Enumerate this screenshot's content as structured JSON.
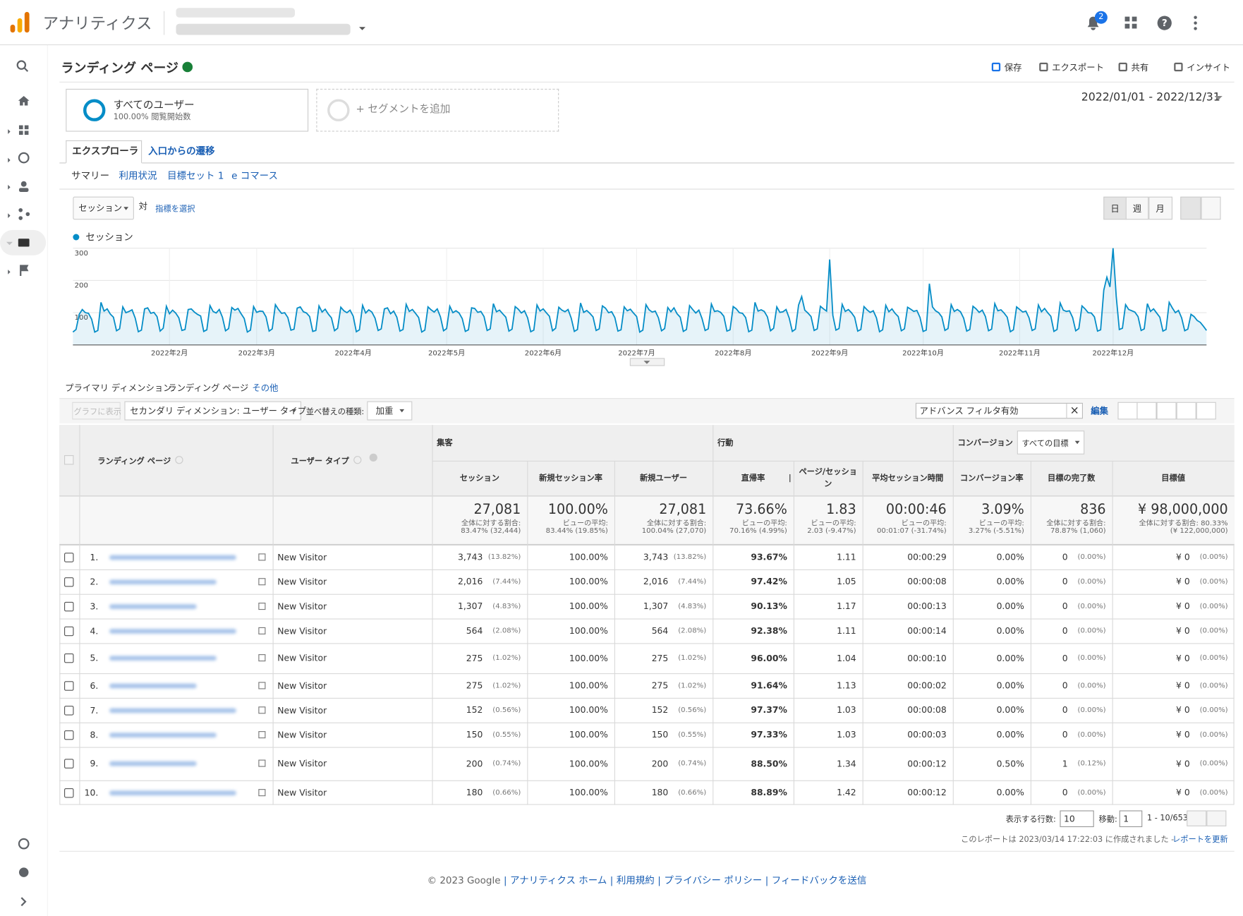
{
  "header": {
    "app_name": "アナリティクス",
    "notification_count": "2"
  },
  "report": {
    "title": "ランディング ページ",
    "actions": [
      "保存",
      "エクスポート",
      "共有",
      "インサイト"
    ]
  },
  "segments": {
    "items": [
      {
        "name": "すべてのユーザー",
        "detail": "100.00% 閲覧開始数"
      }
    ],
    "add": "+ セグメントを追加"
  },
  "date_range": "2022/01/01 - 2022/12/31",
  "tabs": [
    "エクスプローラ",
    "入口からの遷移"
  ],
  "subtabs": [
    "サマリー",
    "利用状況",
    "目標セット 1",
    "e コマース"
  ],
  "chart_controls": {
    "metric": "セッション",
    "versus": "対",
    "select_metric": "指標を選択",
    "granularity": [
      "日",
      "週",
      "月"
    ]
  },
  "chart_data": {
    "type": "line",
    "series": [
      {
        "name": "セッション",
        "color": "#058dc7",
        "values": [
          40,
          48,
          95,
          110,
          100,
          98,
          80,
          40,
          45,
          132,
          105,
          112,
          96,
          86,
          44,
          50,
          118,
          100,
          104,
          109,
          83,
          41,
          46,
          112,
          115,
          98,
          101,
          88,
          43,
          52,
          120,
          97,
          108,
          99,
          84,
          45,
          48,
          110,
          112,
          102,
          95,
          90,
          42,
          47,
          122,
          104,
          99,
          110,
          86,
          44,
          51,
          116,
          108,
          113,
          97,
          82,
          40,
          46,
          119,
          101,
          105,
          104,
          87,
          43,
          50,
          125,
          110,
          98,
          100,
          85,
          46,
          49,
          114,
          118,
          103,
          99,
          88,
          42,
          45,
          121,
          102,
          111,
          96,
          84,
          44,
          52,
          117,
          106,
          100,
          108,
          89,
          41,
          47,
          123,
          99,
          109,
          102,
          83,
          45,
          50,
          112,
          115,
          97,
          105,
          86,
          43,
          48,
          126,
          104,
          110,
          98,
          85,
          40,
          46,
          118,
          109,
          102,
          112,
          87,
          44,
          51,
          120,
          100,
          106,
          99,
          82,
          42,
          47,
          115,
          113,
          101,
          104,
          88,
          45,
          50,
          128,
          103,
          108,
          97,
          86,
          43,
          49,
          119,
          111,
          99,
          106,
          84,
          41,
          46,
          124,
          105,
          112,
          100,
          89,
          44,
          52,
          117,
          108,
          103,
          110,
          83,
          42,
          48,
          130,
          101,
          107,
          98,
          87,
          45,
          50,
          121,
          114,
          100,
          103,
          85,
          43,
          47,
          118,
          106,
          111,
          99,
          88,
          40,
          46,
          125,
          109,
          102,
          105,
          84,
          44,
          51,
          116,
          103,
          115,
          97,
          86,
          42,
          48,
          122,
          110,
          99,
          108,
          82,
          45,
          50,
          127,
          104,
          106,
          101,
          89,
          43,
          47,
          119,
          112,
          100,
          98,
          85,
          41,
          46,
          132,
          105,
          109,
          104,
          87,
          44,
          52,
          118,
          101,
          103,
          110,
          83,
          42,
          49,
          124,
          150,
          108,
          99,
          88,
          45,
          50,
          120,
          112,
          105,
          265,
          92,
          46,
          51,
          126,
          104,
          110,
          100,
          86,
          43,
          48,
          119,
          109,
          101,
          106,
          84,
          41,
          47,
          123,
          103,
          112,
          98,
          88,
          44,
          50,
          117,
          111,
          104,
          107,
          85,
          42,
          46,
          190,
          118,
          106,
          100,
          87,
          45,
          51,
          125,
          104,
          110,
          103,
          83,
          43,
          48,
          120,
          112,
          101,
          108,
          88,
          44,
          49,
          128,
          106,
          109,
          99,
          86,
          41,
          47,
          118,
          110,
          102,
          105,
          84,
          45,
          50,
          124,
          103,
          113,
          100,
          89,
          42,
          48,
          130,
          108,
          104,
          106,
          85,
          44,
          51,
          121,
          112,
          100,
          99,
          87,
          43,
          47,
          170,
          210,
          180,
          300,
          150,
          48,
          52,
          125,
          110,
          106,
          102,
          88,
          45,
          50,
          128,
          104,
          112,
          99,
          86,
          43,
          48,
          132,
          115,
          100,
          107,
          84,
          44,
          49,
          95,
          88,
          76,
          70,
          58,
          45
        ]
      }
    ],
    "xlim": [
      1,
      365
    ],
    "xticks": [
      {
        "value": 32,
        "label": "2022年2月"
      },
      {
        "value": 60,
        "label": "2022年3月"
      },
      {
        "value": 91,
        "label": "2022年4月"
      },
      {
        "value": 121,
        "label": "2022年5月"
      },
      {
        "value": 152,
        "label": "2022年6月"
      },
      {
        "value": 182,
        "label": "2022年7月"
      },
      {
        "value": 213,
        "label": "2022年8月"
      },
      {
        "value": 244,
        "label": "2022年9月"
      },
      {
        "value": 274,
        "label": "2022年10月"
      },
      {
        "value": 305,
        "label": "2022年11月"
      },
      {
        "value": 335,
        "label": "2022年12月"
      }
    ],
    "ylim": [
      0,
      300
    ],
    "yticks": [
      100,
      200,
      300
    ],
    "grid": true,
    "legend": "top-left"
  },
  "dimension": {
    "label": "プライマリ ディメンション:",
    "value": "ランディング ページ",
    "other": "その他"
  },
  "toolbar": {
    "plot": "グラフに表示",
    "secondary": "セカンダリ ディメンション: ユーザー タイプ",
    "sort_label": "並べ替えの種類:",
    "sort": "加重",
    "filter": "アドバンス フィルタ有効",
    "edit": "編集"
  },
  "table": {
    "group_headers": [
      "集客",
      "行動",
      "コンバージョン"
    ],
    "goal_select": "すべての目標",
    "columns": [
      "ランディング ページ",
      "ユーザー タイプ",
      "セッション",
      "新規セッション率",
      "新規ユーザー",
      "直帰率",
      "ページ/セッション",
      "平均セッション時間",
      "コンバージョン率",
      "目標の完了数",
      "目標値"
    ],
    "totals": [
      {
        "value": "27,081",
        "label": "全体に対する割合:",
        "detail": "83.47% (32,444)"
      },
      {
        "value": "100.00%",
        "label": "ビューの平均:",
        "detail": "83.44% (19.85%)"
      },
      {
        "value": "27,081",
        "label": "全体に対する割合:",
        "detail": "100.04% (27,070)"
      },
      {
        "value": "73.66%",
        "label": "ビューの平均:",
        "detail": "70.16% (4.99%)"
      },
      {
        "value": "1.83",
        "label": "ビューの平均:",
        "detail": "2.03 (-9.47%)"
      },
      {
        "value": "00:00:46",
        "label": "ビューの平均:",
        "detail": "00:01:07 (-31.74%)"
      },
      {
        "value": "3.09%",
        "label": "ビューの平均:",
        "detail": "3.27% (-5.51%)"
      },
      {
        "value": "836",
        "label": "全体に対する割合:",
        "detail": "78.87% (1,060)"
      },
      {
        "value": "¥ 98,000,000",
        "label": "全体に対する割合: 80.33%",
        "detail": "(¥ 122,000,000)"
      }
    ],
    "rows": [
      {
        "num": "1.",
        "user_type": "New Visitor",
        "cells": [
          [
            "3,743",
            "(13.82%)"
          ],
          [
            "100.00%"
          ],
          [
            "3,743",
            "(13.82%)"
          ],
          [
            "93.67%"
          ],
          [
            "1.11"
          ],
          [
            "00:00:29"
          ],
          [
            "0.00%"
          ],
          [
            "0",
            "(0.00%)"
          ],
          [
            "¥ 0",
            "(0.00%)"
          ]
        ]
      },
      {
        "num": "2.",
        "user_type": "New Visitor",
        "cells": [
          [
            "2,016",
            "(7.44%)"
          ],
          [
            "100.00%"
          ],
          [
            "2,016",
            "(7.44%)"
          ],
          [
            "97.42%"
          ],
          [
            "1.05"
          ],
          [
            "00:00:08"
          ],
          [
            "0.00%"
          ],
          [
            "0",
            "(0.00%)"
          ],
          [
            "¥ 0",
            "(0.00%)"
          ]
        ]
      },
      {
        "num": "3.",
        "user_type": "New Visitor",
        "cells": [
          [
            "1,307",
            "(4.83%)"
          ],
          [
            "100.00%"
          ],
          [
            "1,307",
            "(4.83%)"
          ],
          [
            "90.13%"
          ],
          [
            "1.17"
          ],
          [
            "00:00:13"
          ],
          [
            "0.00%"
          ],
          [
            "0",
            "(0.00%)"
          ],
          [
            "¥ 0",
            "(0.00%)"
          ]
        ]
      },
      {
        "num": "4.",
        "user_type": "New Visitor",
        "cells": [
          [
            "564",
            "(2.08%)"
          ],
          [
            "100.00%"
          ],
          [
            "564",
            "(2.08%)"
          ],
          [
            "92.38%"
          ],
          [
            "1.11"
          ],
          [
            "00:00:14"
          ],
          [
            "0.00%"
          ],
          [
            "0",
            "(0.00%)"
          ],
          [
            "¥ 0",
            "(0.00%)"
          ]
        ]
      },
      {
        "num": "5.",
        "user_type": "New Visitor",
        "cells": [
          [
            "275",
            "(1.02%)"
          ],
          [
            "100.00%"
          ],
          [
            "275",
            "(1.02%)"
          ],
          [
            "96.00%"
          ],
          [
            "1.04"
          ],
          [
            "00:00:10"
          ],
          [
            "0.00%"
          ],
          [
            "0",
            "(0.00%)"
          ],
          [
            "¥ 0",
            "(0.00%)"
          ]
        ]
      },
      {
        "num": "6.",
        "user_type": "New Visitor",
        "cells": [
          [
            "275",
            "(1.02%)"
          ],
          [
            "100.00%"
          ],
          [
            "275",
            "(1.02%)"
          ],
          [
            "91.64%"
          ],
          [
            "1.13"
          ],
          [
            "00:00:02"
          ],
          [
            "0.00%"
          ],
          [
            "0",
            "(0.00%)"
          ],
          [
            "¥ 0",
            "(0.00%)"
          ]
        ]
      },
      {
        "num": "7.",
        "user_type": "New Visitor",
        "cells": [
          [
            "152",
            "(0.56%)"
          ],
          [
            "100.00%"
          ],
          [
            "152",
            "(0.56%)"
          ],
          [
            "97.37%"
          ],
          [
            "1.03"
          ],
          [
            "00:00:08"
          ],
          [
            "0.00%"
          ],
          [
            "0",
            "(0.00%)"
          ],
          [
            "¥ 0",
            "(0.00%)"
          ]
        ]
      },
      {
        "num": "8.",
        "user_type": "New Visitor",
        "cells": [
          [
            "150",
            "(0.55%)"
          ],
          [
            "100.00%"
          ],
          [
            "150",
            "(0.55%)"
          ],
          [
            "97.33%"
          ],
          [
            "1.03"
          ],
          [
            "00:00:03"
          ],
          [
            "0.00%"
          ],
          [
            "0",
            "(0.00%)"
          ],
          [
            "¥ 0",
            "(0.00%)"
          ]
        ]
      },
      {
        "num": "9.",
        "user_type": "New Visitor",
        "cells": [
          [
            "200",
            "(0.74%)"
          ],
          [
            "100.00%"
          ],
          [
            "200",
            "(0.74%)"
          ],
          [
            "88.50%"
          ],
          [
            "1.34"
          ],
          [
            "00:00:12"
          ],
          [
            "0.50%"
          ],
          [
            "1",
            "(0.12%)"
          ],
          [
            "¥ 0",
            "(0.00%)"
          ]
        ]
      },
      {
        "num": "10.",
        "user_type": "New Visitor",
        "cells": [
          [
            "180",
            "(0.66%)"
          ],
          [
            "100.00%"
          ],
          [
            "180",
            "(0.66%)"
          ],
          [
            "88.89%"
          ],
          [
            "1.42"
          ],
          [
            "00:00:12"
          ],
          [
            "0.00%"
          ],
          [
            "0",
            "(0.00%)"
          ],
          [
            "¥ 0",
            "(0.00%)"
          ]
        ]
      }
    ]
  },
  "pagination": {
    "rows_label": "表示する行数:",
    "rows": "10",
    "goto_label": "移動:",
    "goto": "1",
    "range": "1 - 10/653"
  },
  "report_note": {
    "text": "このレポートは 2023/03/14 17:22:03 に作成されました - ",
    "refresh": "レポートを更新"
  },
  "footer": {
    "copyright": "© 2023 Google",
    "links": [
      "アナリティクス ホーム",
      "利用規約",
      "プライバシー ポリシー",
      "フィードバックを送信"
    ]
  }
}
